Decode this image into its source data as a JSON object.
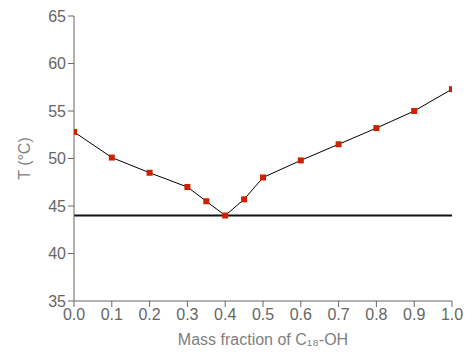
{
  "chart_data": {
    "type": "line",
    "xlabel": "Mass fraction of C₁₈-OH",
    "ylabel": "T (°C)",
    "x": [
      0.0,
      0.1,
      0.2,
      0.3,
      0.35,
      0.4,
      0.45,
      0.5,
      0.6,
      0.7,
      0.8,
      0.9,
      1.0
    ],
    "series": [
      {
        "values": [
          52.8,
          50.1,
          48.5,
          47.0,
          45.5,
          44.0,
          45.7,
          48.0,
          49.8,
          51.5,
          53.2,
          55.0,
          57.3
        ],
        "color": "#000000",
        "colors": [
          "#CC2200",
          "#CC2200",
          "#CC2200",
          "#CC2200",
          "#CC2200",
          "#CC2200",
          "#CC2200",
          "#CC2200",
          "#CC2200",
          "#CC2200",
          "#CC2200",
          "#CC2200",
          "#CC2200"
        ],
        "marker": "square",
        "line_style": "solid"
      }
    ],
    "hlines": [
      {
        "y": 44.0,
        "color": "#111111"
      }
    ],
    "xlim": [
      0.0,
      1.0
    ],
    "ylim": [
      35,
      65
    ],
    "xticks": [
      {
        "value": 0.0,
        "label": "0.0"
      },
      0.1,
      0.2,
      0.3,
      0.4,
      0.5,
      0.6,
      0.7,
      0.8,
      0.9,
      {
        "value": 1.0,
        "label": "1.0"
      }
    ],
    "yticks": [
      35,
      40,
      45,
      50,
      55,
      60,
      65
    ],
    "grid": false
  }
}
